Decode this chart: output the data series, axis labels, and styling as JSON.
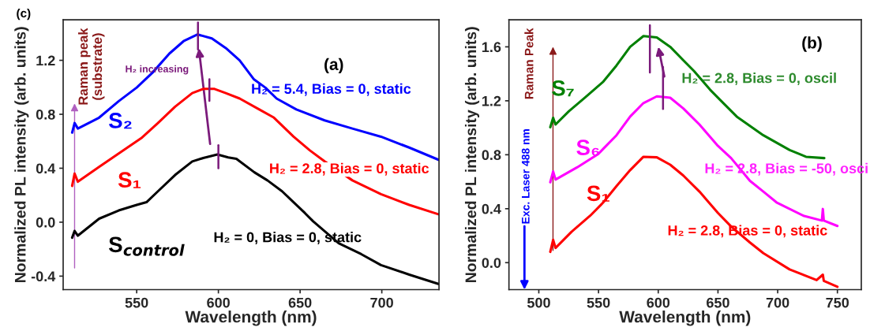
{
  "chart_data": [
    {
      "type": "line",
      "xlabel": "Wavelength (nm)",
      "ylabel": "Normalized PL intensity (arb. units)",
      "xlim": [
        505,
        735
      ],
      "xticks": [
        550,
        600,
        650,
        700
      ],
      "ylim": [
        -0.5,
        1.5
      ],
      "yticks": [
        {
          "value": -0.4,
          "label": "-0.4"
        },
        {
          "value": 0,
          "label": "0.0"
        },
        {
          "value": 0.4,
          "label": "0.4"
        },
        {
          "value": 0.8,
          "label": "0.8"
        },
        {
          "value": 1.2,
          "label": "1.2"
        }
      ],
      "grid": false,
      "legend": false,
      "series": [
        {
          "name": "S$_{control}$",
          "color": "#000000",
          "x": [
            510.5,
            512,
            514,
            527,
            539,
            550,
            556,
            563,
            573.5,
            584,
            590.7,
            599.4,
            606,
            611,
            622,
            630,
            639,
            646,
            653,
            658,
            673.6,
            687.4,
            699.5,
            716.8,
            735
          ],
          "values": [
            -0.115,
            -0.065,
            -0.1,
            0.026,
            0.087,
            0.128,
            0.148,
            0.229,
            0.35,
            0.45,
            0.476,
            0.502,
            0.48,
            0.47,
            0.37,
            0.31,
            0.229,
            0.148,
            0.067,
            0.006,
            -0.156,
            -0.237,
            -0.318,
            -0.389,
            -0.459
          ]
        },
        {
          "name": "S₁",
          "color": "#ff0000",
          "x": [
            510.5,
            512,
            514,
            527,
            539,
            552.8,
            563,
            573.5,
            584,
            590.7,
            597.6,
            604.5,
            613,
            625,
            634,
            646,
            656,
            665,
            682,
            699.5,
            716.8,
            735
          ],
          "values": [
            0.269,
            0.36,
            0.3,
            0.41,
            0.51,
            0.623,
            0.735,
            0.856,
            0.957,
            0.988,
            0.988,
            0.957,
            0.917,
            0.836,
            0.775,
            0.634,
            0.532,
            0.451,
            0.31,
            0.208,
            0.128,
            0.057
          ]
        },
        {
          "name": "S₂",
          "color": "#0000ff",
          "x": [
            510.5,
            512,
            514,
            527,
            539,
            550,
            559.7,
            570,
            578.7,
            587.3,
            596,
            604.5,
            613,
            621.8,
            628.7,
            635.6,
            647.7,
            665,
            682,
            699.5,
            716.8,
            735
          ],
          "values": [
            0.664,
            0.735,
            0.694,
            0.775,
            0.897,
            0.998,
            1.109,
            1.25,
            1.342,
            1.392,
            1.362,
            1.291,
            1.2,
            1.058,
            0.998,
            0.917,
            0.836,
            0.755,
            0.694,
            0.634,
            0.553,
            0.461
          ]
        },
        {
          "color": "#7b1a7b",
          "x": [
            587.5,
            587.5
          ],
          "values": [
            1.28,
            1.48
          ]
        },
        {
          "color": "#7b1a7b",
          "x": [
            594.5,
            594.5
          ],
          "values": [
            0.9,
            1.06
          ]
        },
        {
          "color": "#7b1a7b",
          "x": [
            600,
            600
          ],
          "values": [
            0.4,
            0.57
          ]
        }
      ],
      "annotations": [
        "(c)",
        "(a)",
        "Raman peak\n(substrate)",
        "H₂ increasing",
        "H₂ = 5.4, Bias = 0, static",
        "H₂ = 2.8, Bias = 0, static",
        "H₂ = 0, Bias = 0, static"
      ]
    },
    {
      "type": "line",
      "xlabel": "Wavelength (nm)",
      "ylabel": "Normalized PL intensity (arb. units)",
      "xlim": [
        475,
        770
      ],
      "xticks": [
        500,
        550,
        600,
        650,
        700,
        750
      ],
      "ylim": [
        -0.2,
        1.8
      ],
      "yticks": [
        {
          "value": 0,
          "label": "0.0"
        },
        {
          "value": 0.4,
          "label": "0.4"
        },
        {
          "value": 0.8,
          "label": "0.8"
        },
        {
          "value": 1.2,
          "label": "1.2"
        },
        {
          "value": 1.6,
          "label": "1.6"
        }
      ],
      "grid": false,
      "legend": false,
      "series": [
        {
          "name": "S₇",
          "color": "#008000",
          "x": [
            509.6,
            512,
            514,
            525.2,
            538.6,
            554,
            565,
            576.5,
            587.6,
            598.8,
            610,
            621,
            630,
            643.4,
            654.5,
            665.7,
            688,
            710,
            723.7,
            739
          ],
          "values": [
            1.004,
            1.074,
            1.024,
            1.123,
            1.223,
            1.342,
            1.461,
            1.6,
            1.68,
            1.67,
            1.6,
            1.5,
            1.42,
            1.282,
            1.183,
            1.083,
            0.944,
            0.835,
            0.785,
            0.775
          ]
        },
        {
          "name": "S₆",
          "color": "#ff00ff",
          "x": [
            509.6,
            512,
            514,
            532,
            549.7,
            565,
            576.5,
            587.6,
            598.8,
            610,
            621,
            634.5,
            650,
            661,
            676.8,
            688,
            699,
            721.5,
            737,
            737.8,
            738.6,
            750
          ],
          "values": [
            0.596,
            0.676,
            0.616,
            0.706,
            0.805,
            0.944,
            1.083,
            1.183,
            1.233,
            1.223,
            1.143,
            1.024,
            0.865,
            0.775,
            0.606,
            0.527,
            0.447,
            0.348,
            0.312,
            0.398,
            0.312,
            0.272
          ]
        },
        {
          "name": "S₁",
          "color": "#ff0000",
          "x": [
            509.6,
            512,
            514,
            527.4,
            543,
            554,
            565,
            576.5,
            587.6,
            598.8,
            610,
            621,
            634.5,
            650,
            661,
            676.8,
            688,
            710,
            732.6,
            737.8,
            738.6,
            750
          ],
          "values": [
            0.08,
            0.169,
            0.109,
            0.229,
            0.348,
            0.447,
            0.567,
            0.686,
            0.785,
            0.781,
            0.726,
            0.646,
            0.527,
            0.368,
            0.268,
            0.149,
            0.07,
            -0.05,
            -0.129,
            -0.089,
            -0.135,
            -0.179
          ]
        },
        {
          "color": "#7b1a7b",
          "x": [
            593,
            593
          ],
          "values": [
            1.41,
            1.76
          ]
        },
        {
          "color": "#7b1a7b",
          "x": [
            604,
            604
          ],
          "values": [
            1.14,
            1.45
          ]
        }
      ],
      "annotations": [
        "(b)",
        "Raman Peak",
        "Exc. Laser 488 nm",
        "H₂ = 2.8, Bias = 0, oscil",
        "H₂ = 2.8, Bias = -50, osci",
        "H₂ = 2.8, Bias = 0, static"
      ]
    }
  ]
}
